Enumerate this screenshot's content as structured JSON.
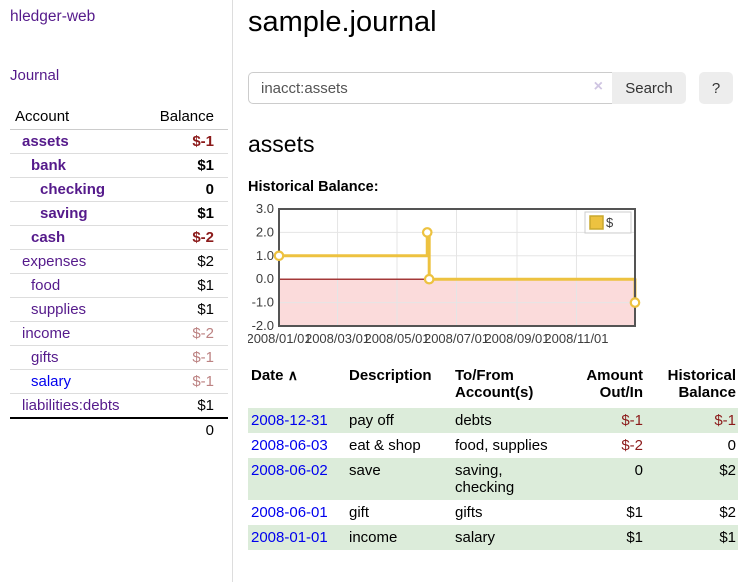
{
  "sidebar": {
    "app_title": "hledger-web",
    "journal_label": "Journal",
    "accounts_table": {
      "headers": {
        "account": "Account",
        "balance": "Balance"
      },
      "rows": [
        {
          "name": "assets",
          "balance": "$-1",
          "depth": 1,
          "bold": true,
          "negative": "strong",
          "link_color": "purple"
        },
        {
          "name": "bank",
          "balance": "$1",
          "depth": 2,
          "bold": true,
          "negative": "none",
          "link_color": "purple"
        },
        {
          "name": "checking",
          "balance": "0",
          "depth": 3,
          "bold": true,
          "negative": "none",
          "link_color": "purple"
        },
        {
          "name": "saving",
          "balance": "$1",
          "depth": 3,
          "bold": true,
          "negative": "none",
          "link_color": "purple"
        },
        {
          "name": "cash",
          "balance": "$-2",
          "depth": 2,
          "bold": true,
          "negative": "strong",
          "link_color": "purple"
        },
        {
          "name": "expenses",
          "balance": "$2",
          "depth": 1,
          "bold": false,
          "negative": "none",
          "link_color": "purple"
        },
        {
          "name": "food",
          "balance": "$1",
          "depth": 2,
          "bold": false,
          "negative": "none",
          "link_color": "purple"
        },
        {
          "name": "supplies",
          "balance": "$1",
          "depth": 2,
          "bold": false,
          "negative": "none",
          "link_color": "purple"
        },
        {
          "name": "income",
          "balance": "$-2",
          "depth": 1,
          "bold": false,
          "negative": "faded",
          "link_color": "purple"
        },
        {
          "name": "gifts",
          "balance": "$-1",
          "depth": 2,
          "bold": false,
          "negative": "faded",
          "link_color": "purple"
        },
        {
          "name": "salary",
          "balance": "$-1",
          "depth": 2,
          "bold": false,
          "negative": "faded",
          "link_color": "blue"
        },
        {
          "name": "liabilities:debts",
          "balance": "$1",
          "depth": 1,
          "bold": false,
          "negative": "none",
          "link_color": "purple"
        }
      ],
      "total": "0"
    }
  },
  "header": {
    "title": "sample.journal"
  },
  "search": {
    "value": "inacct:assets",
    "clear_icon": "×",
    "button_label": "Search",
    "help_label": "?"
  },
  "account_page": {
    "heading": "assets",
    "chart_label": "Historical Balance:"
  },
  "chart_data": {
    "type": "line",
    "title": "Historical Balance:",
    "step": true,
    "series": [
      {
        "name": "$",
        "color": "#EDC240",
        "points": [
          [
            "2008-01-01",
            1
          ],
          [
            "2008-06-01",
            2
          ],
          [
            "2008-06-03",
            0
          ],
          [
            "2008-12-31",
            -1
          ]
        ]
      }
    ],
    "xlim": [
      "2008-01-01",
      "2008-12-31"
    ],
    "ylim": [
      -2,
      3
    ],
    "yticks": [
      {
        "v": 3,
        "label": "3.0"
      },
      {
        "v": 2,
        "label": "2.0"
      },
      {
        "v": 1,
        "label": "1.0"
      },
      {
        "v": 0,
        "label": "0.0"
      },
      {
        "v": -1,
        "label": "-1.0"
      },
      {
        "v": -2,
        "label": "-2.0"
      }
    ],
    "xticks": [
      {
        "v": "2008-01-01",
        "label": "2008/01/01"
      },
      {
        "v": "2008-03-01",
        "label": "2008/03/01"
      },
      {
        "v": "2008-05-01",
        "label": "2008/05/01"
      },
      {
        "v": "2008-07-01",
        "label": "2008/07/01"
      },
      {
        "v": "2008-09-01",
        "label": "2008/09/01"
      },
      {
        "v": "2008-11-01",
        "label": "2008/11/01"
      }
    ],
    "negative_fill": "#fbdbdb",
    "zero_line_color": "#8b0000",
    "grid_color": "#e5e5e5",
    "border_color": "#545454",
    "legend": {
      "label": "$",
      "swatch_color": "#EDC240",
      "swatch_border": "#c9a82e",
      "position": "top-right"
    }
  },
  "register_table": {
    "headers": {
      "date": "Date",
      "sort_icon": "∧",
      "description": "Description",
      "account_lines": [
        "To/From",
        "Account(s)"
      ],
      "amount_lines": [
        "Amount",
        "Out/In"
      ],
      "balance_lines": [
        "Historical",
        "Balance"
      ]
    },
    "rows": [
      {
        "date": "2008-12-31",
        "description": "pay off",
        "accounts": [
          "debts"
        ],
        "amount": "$-1",
        "amount_negative": true,
        "balance": "$-1",
        "balance_negative": true,
        "shaded": true
      },
      {
        "date": "2008-06-03",
        "description": "eat & shop",
        "accounts": [
          "food, supplies"
        ],
        "amount": "$-2",
        "amount_negative": true,
        "balance": "0",
        "balance_negative": false,
        "shaded": false
      },
      {
        "date": "2008-06-02",
        "description": "save",
        "accounts": [
          "saving,",
          "checking"
        ],
        "amount": "0",
        "amount_negative": false,
        "balance": "$2",
        "balance_negative": false,
        "shaded": true
      },
      {
        "date": "2008-06-01",
        "description": "gift",
        "accounts": [
          "gifts"
        ],
        "amount": "$1",
        "amount_negative": false,
        "balance": "$2",
        "balance_negative": false,
        "shaded": false
      },
      {
        "date": "2008-01-01",
        "description": "income",
        "accounts": [
          "salary"
        ],
        "amount": "$1",
        "amount_negative": false,
        "balance": "$1",
        "balance_negative": false,
        "shaded": true
      }
    ]
  },
  "colors": {
    "link_purple": "#551A8B",
    "link_blue": "#0000EE",
    "negative_strong": "#8b1a1a",
    "negative_faded": "#bc8282",
    "row_shade_green": "#dcecda",
    "series_gold": "#EDC240"
  }
}
